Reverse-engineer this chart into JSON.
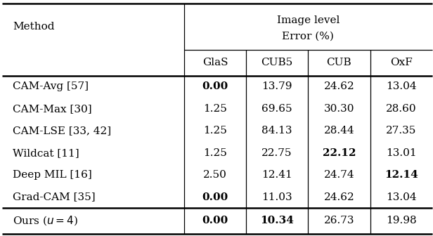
{
  "header_method": "Method",
  "header_top_line1": "Image level",
  "header_top_line2": "Error (%)",
  "col_headers": [
    "GlaS",
    "CUB5",
    "CUB",
    "OxF"
  ],
  "rows": [
    {
      "method": "CAM-Avg [57]",
      "values": [
        "0.00",
        "13.79",
        "24.62",
        "13.04"
      ],
      "bold": [
        true,
        false,
        false,
        false
      ]
    },
    {
      "method": "CAM-Max [30]",
      "values": [
        "1.25",
        "69.65",
        "30.30",
        "28.60"
      ],
      "bold": [
        false,
        false,
        false,
        false
      ]
    },
    {
      "method": "CAM-LSE [33, 42]",
      "values": [
        "1.25",
        "84.13",
        "28.44",
        "27.35"
      ],
      "bold": [
        false,
        false,
        false,
        false
      ]
    },
    {
      "method": "Wildcat [11]",
      "values": [
        "1.25",
        "22.75",
        "22.12",
        "13.01"
      ],
      "bold": [
        false,
        false,
        true,
        false
      ]
    },
    {
      "method": "Deep MIL [16]",
      "values": [
        "2.50",
        "12.41",
        "24.74",
        "12.14"
      ],
      "bold": [
        false,
        false,
        false,
        true
      ]
    },
    {
      "method": "Grad-CAM [35]",
      "values": [
        "0.00",
        "11.03",
        "24.62",
        "13.04"
      ],
      "bold": [
        true,
        false,
        false,
        false
      ]
    }
  ],
  "last_row": {
    "method": "Ours ($u = 4$)",
    "values": [
      "0.00",
      "10.34",
      "26.73",
      "19.98"
    ],
    "bold": [
      true,
      true,
      false,
      false
    ]
  },
  "bg_color": "#ffffff",
  "text_color": "#000000",
  "fontsize": 11.0
}
